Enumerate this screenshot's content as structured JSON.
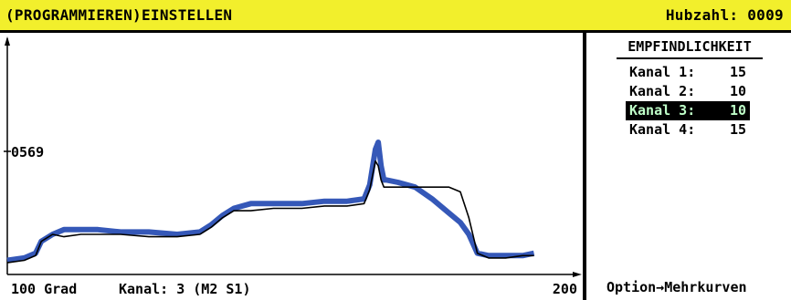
{
  "header": {
    "title": "(PROGRAMMIEREN)EINSTELLEN",
    "hubzahl": "Hubzahl: 0009"
  },
  "chart_data": {
    "type": "line",
    "y_marker_label": "0569",
    "x_min_label": "100 Grad",
    "x_max_label": "200",
    "series": [
      {
        "color": "#3558b8",
        "values": [
          [
            100,
            0.06
          ],
          [
            103,
            0.07
          ],
          [
            105,
            0.09
          ],
          [
            106,
            0.14
          ],
          [
            108,
            0.17
          ],
          [
            110,
            0.19
          ],
          [
            113,
            0.19
          ],
          [
            116,
            0.19
          ],
          [
            120,
            0.18
          ],
          [
            125,
            0.18
          ],
          [
            130,
            0.17
          ],
          [
            134,
            0.18
          ],
          [
            136,
            0.21
          ],
          [
            138,
            0.25
          ],
          [
            140,
            0.28
          ],
          [
            143,
            0.3
          ],
          [
            147,
            0.3
          ],
          [
            152,
            0.3
          ],
          [
            156,
            0.31
          ],
          [
            160,
            0.31
          ],
          [
            163,
            0.32
          ],
          [
            164,
            0.38
          ],
          [
            165,
            0.53
          ],
          [
            165.5,
            0.56
          ],
          [
            166,
            0.46
          ],
          [
            166.5,
            0.4
          ],
          [
            167,
            0.4
          ],
          [
            169,
            0.39
          ],
          [
            172,
            0.37
          ],
          [
            175,
            0.32
          ],
          [
            178,
            0.26
          ],
          [
            180,
            0.22
          ],
          [
            181.5,
            0.17
          ],
          [
            183,
            0.09
          ],
          [
            185,
            0.08
          ],
          [
            188,
            0.08
          ],
          [
            191,
            0.08
          ],
          [
            193,
            0.09
          ]
        ]
      },
      {
        "color": "#000000",
        "values": [
          [
            100,
            0.05
          ],
          [
            103,
            0.06
          ],
          [
            105,
            0.08
          ],
          [
            106,
            0.14
          ],
          [
            108,
            0.17
          ],
          [
            110,
            0.16
          ],
          [
            113,
            0.17
          ],
          [
            116,
            0.17
          ],
          [
            120,
            0.17
          ],
          [
            125,
            0.16
          ],
          [
            130,
            0.16
          ],
          [
            134,
            0.17
          ],
          [
            136,
            0.2
          ],
          [
            138,
            0.24
          ],
          [
            140,
            0.27
          ],
          [
            143,
            0.27
          ],
          [
            147,
            0.28
          ],
          [
            152,
            0.28
          ],
          [
            156,
            0.29
          ],
          [
            160,
            0.29
          ],
          [
            163,
            0.3
          ],
          [
            164,
            0.36
          ],
          [
            165,
            0.48
          ],
          [
            165.5,
            0.46
          ],
          [
            166,
            0.4
          ],
          [
            166.5,
            0.37
          ],
          [
            167,
            0.37
          ],
          [
            169,
            0.37
          ],
          [
            172,
            0.37
          ],
          [
            175,
            0.37
          ],
          [
            178,
            0.37
          ],
          [
            180,
            0.35
          ],
          [
            181.5,
            0.24
          ],
          [
            183,
            0.09
          ],
          [
            185,
            0.07
          ],
          [
            188,
            0.07
          ],
          [
            191,
            0.08
          ],
          [
            193,
            0.08
          ]
        ]
      }
    ]
  },
  "status": {
    "kanal_info": "Kanal: 3  (M2 S1)"
  },
  "sensitivity": {
    "title": "EMPFINDLICHKEIT",
    "rows": [
      {
        "label": "Kanal 1:",
        "value": "15",
        "selected": false
      },
      {
        "label": "Kanal 2:",
        "value": "10",
        "selected": false
      },
      {
        "label": "Kanal 3:",
        "value": "10",
        "selected": true
      },
      {
        "label": "Kanal 4:",
        "value": "15",
        "selected": false
      }
    ]
  },
  "footer": {
    "option": "Option→Mehrkurven"
  }
}
